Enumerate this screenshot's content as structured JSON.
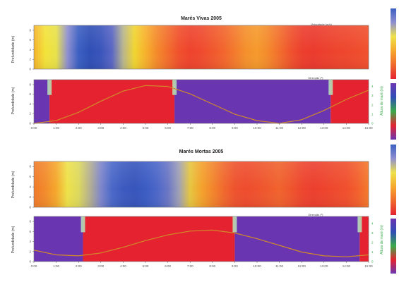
{
  "figure": {
    "panel_titles": [
      "Marés Vivas 2005",
      "Marés Mortas 2005"
    ],
    "ylabel": "Profundidade (m)",
    "right_ylabel": "Altura de maré (m)",
    "velocity_label": "Velocidade (m/s)",
    "direction_label": "Direcção (º)",
    "x_ticks": [
      "0:00",
      "1:00",
      "2:00",
      "3:00",
      "4:00",
      "5:00",
      "6:00",
      "7:00",
      "8:00",
      "9:00",
      "10:00",
      "11:00",
      "12:00",
      "13:00",
      "14:00",
      "15:00"
    ],
    "y_ticks": [
      "0",
      "2",
      "4",
      "6",
      "8"
    ],
    "right_ticks": [
      "0",
      "1",
      "2",
      "3",
      "4"
    ]
  },
  "chart_data": [
    {
      "type": "heatmap",
      "title": "Marés Vivas 2005",
      "panel": "velocity",
      "x_range": [
        0,
        15
      ],
      "y_range": [
        0,
        9
      ],
      "time_hours": [
        0,
        0.5,
        1,
        1.5,
        2,
        2.5,
        3,
        3.5,
        4,
        4.5,
        5,
        5.5,
        6,
        6.5,
        7,
        7.5,
        8,
        8.5,
        9,
        9.5,
        10,
        10.5,
        11,
        11.5,
        12,
        12.5,
        13,
        13.5,
        14,
        14.5,
        15
      ],
      "color_profile": [
        "#f5b22c",
        "#f3e23a",
        "#e8e24a",
        "#8f8fcf",
        "#3b5fc2",
        "#2f4fb5",
        "#3a55bb",
        "#5a66c4",
        "#b8b58e",
        "#f0d531",
        "#f7b12c",
        "#f48a2b",
        "#f26d2c",
        "#f0502c",
        "#ee432d",
        "#ef4a2e",
        "#f0572d",
        "#f2652d",
        "#f37a2c",
        "#f4902c",
        "#f59a2c",
        "#f4882c",
        "#f26e2c",
        "#ef532d",
        "#ec3f2d",
        "#eb3a2e",
        "#ec3f2d",
        "#ed442d",
        "#ee472d",
        "#ef4c2d",
        "#f0512d"
      ]
    },
    {
      "type": "heatmap",
      "title": "Marés Vivas 2005",
      "panel": "direction",
      "x_range": [
        0,
        15
      ],
      "y_range": [
        0,
        9
      ],
      "segments": [
        {
          "from": 0,
          "to": 0.7,
          "color": "#6a35b0"
        },
        {
          "from": 0.7,
          "to": 6.3,
          "color": "#e52330"
        },
        {
          "from": 6.3,
          "to": 13.3,
          "color": "#6a35b0"
        },
        {
          "from": 13.3,
          "to": 15,
          "color": "#e52330"
        }
      ],
      "tide_height": {
        "t": [
          0,
          1,
          2,
          3,
          4,
          5,
          6,
          7,
          8,
          9,
          10,
          11,
          12,
          13,
          14,
          15
        ],
        "h": [
          0.0,
          0.3,
          1.2,
          2.4,
          3.5,
          4.1,
          4.0,
          3.2,
          2.1,
          1.0,
          0.3,
          0.0,
          0.4,
          1.4,
          2.6,
          3.6
        ]
      }
    },
    {
      "type": "heatmap",
      "title": "Marés Mortas 2005",
      "panel": "velocity",
      "x_range": [
        0,
        15
      ],
      "y_range": [
        0,
        9
      ],
      "time_hours": [
        0,
        0.5,
        1,
        1.5,
        2,
        2.5,
        3,
        3.5,
        4,
        4.5,
        5,
        5.5,
        6,
        6.5,
        7,
        7.5,
        8,
        8.5,
        9,
        9.5,
        10,
        10.5,
        11,
        11.5,
        12,
        12.5,
        13,
        13.5,
        14,
        14.5,
        15
      ],
      "color_profile": [
        "#f07a2b",
        "#f28a2b",
        "#f5a82d",
        "#eee24a",
        "#ddd95e",
        "#b5b08f",
        "#7f86cb",
        "#4a68c8",
        "#3d5bbf",
        "#3755bb",
        "#3b5cc3",
        "#4b66c8",
        "#6a76c5",
        "#9fa0b6",
        "#e6c640",
        "#f3a32c",
        "#f2862c",
        "#f0692d",
        "#ee532d",
        "#ee4c2d",
        "#ee522d",
        "#ef5a2d",
        "#f0632d",
        "#ef562d",
        "#ed462e",
        "#ec3f2e",
        "#ed432d",
        "#ee4a2d",
        "#f04f2d",
        "#f2602c",
        "#f37a2c"
      ]
    },
    {
      "type": "heatmap",
      "title": "Marés Mortas 2005",
      "panel": "direction",
      "x_range": [
        0,
        15
      ],
      "y_range": [
        0,
        9
      ],
      "segments": [
        {
          "from": 0,
          "to": 2.2,
          "color": "#6a35b0"
        },
        {
          "from": 2.2,
          "to": 9.0,
          "color": "#e52330"
        },
        {
          "from": 9.0,
          "to": 14.6,
          "color": "#6a35b0"
        },
        {
          "from": 14.6,
          "to": 15,
          "color": "#e52330"
        }
      ],
      "tide_height": {
        "t": [
          0,
          1,
          2,
          3,
          4,
          5,
          6,
          7,
          8,
          9,
          10,
          11,
          12,
          13,
          14,
          15
        ],
        "h": [
          1.2,
          0.7,
          0.6,
          0.9,
          1.5,
          2.2,
          2.8,
          3.2,
          3.3,
          3.0,
          2.4,
          1.7,
          1.0,
          0.6,
          0.5,
          0.7
        ]
      }
    }
  ],
  "colorbars": {
    "velocity": [
      "#e52330",
      "#f0692d",
      "#f5a82d",
      "#eee24a",
      "#8f8fcf",
      "#3b5fc2"
    ],
    "direction": [
      "#6a35b0",
      "#e52330",
      "#3aaa4a",
      "#2f4fb5",
      "#6a35b0"
    ]
  }
}
